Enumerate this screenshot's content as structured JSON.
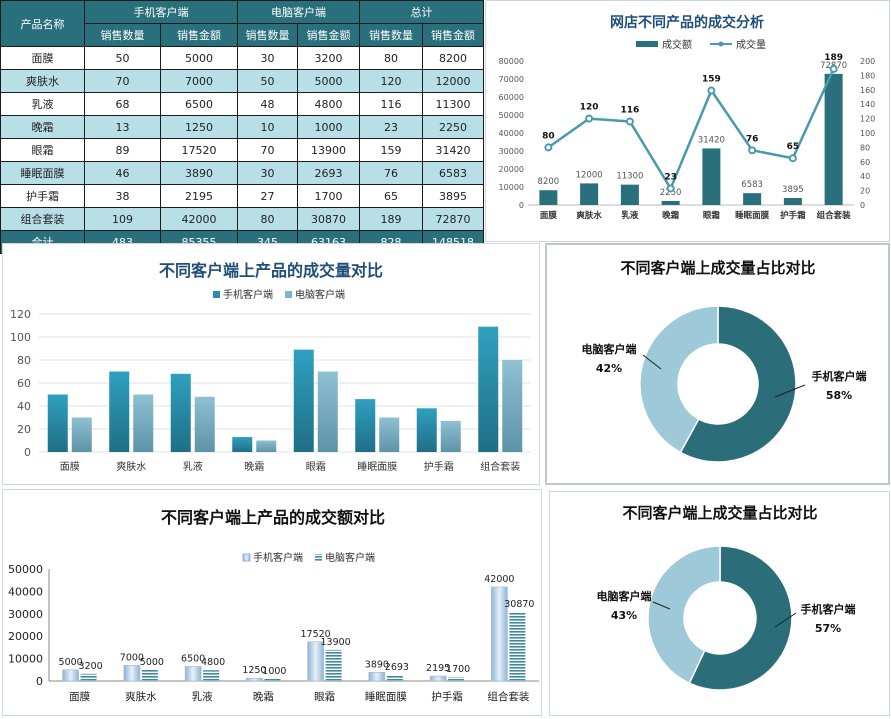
{
  "table": {
    "header_product": "产品名称",
    "groups": [
      "手机客户端",
      "电脑客户端",
      "总计"
    ],
    "sub_headers": [
      "销售数量",
      "销售金额",
      "销售数量",
      "销售金额",
      "销售数量",
      "销售金额"
    ],
    "rows": [
      [
        "面膜",
        "50",
        "5000",
        "30",
        "3200",
        "80",
        "8200"
      ],
      [
        "爽肤水",
        "70",
        "7000",
        "50",
        "5000",
        "120",
        "12000"
      ],
      [
        "乳液",
        "68",
        "6500",
        "48",
        "4800",
        "116",
        "11300"
      ],
      [
        "晚霜",
        "13",
        "1250",
        "10",
        "1000",
        "23",
        "2250"
      ],
      [
        "眼霜",
        "89",
        "17520",
        "70",
        "13900",
        "159",
        "31420"
      ],
      [
        "睡眠面膜",
        "46",
        "3890",
        "30",
        "2693",
        "76",
        "6583"
      ],
      [
        "护手霜",
        "38",
        "2195",
        "27",
        "1700",
        "65",
        "3895"
      ],
      [
        "组合套装",
        "109",
        "42000",
        "80",
        "30870",
        "189",
        "72870"
      ]
    ],
    "total": [
      "合计",
      "483",
      "85355",
      "345",
      "63163",
      "828",
      "148518"
    ]
  },
  "colors": {
    "dark_teal": "#2a6f7c",
    "mobile_bar": "#2e8aa8",
    "pc_bar": "#7fb3c8",
    "light_row": "#b8dfe8",
    "donut_dark": "#2b6e7a",
    "donut_light": "#9ec9d8",
    "amount_mobile": "#a9c6df",
    "amount_pc": "#4c8ea6",
    "title_blue": "#1f4e79"
  },
  "chart_data": [
    {
      "id": "combo",
      "type": "bar",
      "title": "网店不同产品的成交分析",
      "categories": [
        "面膜",
        "爽肤水",
        "乳液",
        "晚霜",
        "眼霜",
        "睡眠面膜",
        "护手霜",
        "组合套装"
      ],
      "series": [
        {
          "name": "成交额",
          "type": "bar",
          "axis": "left",
          "values": [
            8200,
            12000,
            11300,
            2250,
            31420,
            6583,
            3895,
            72870
          ]
        },
        {
          "name": "成交量",
          "type": "line",
          "axis": "right",
          "values": [
            80,
            120,
            116,
            23,
            159,
            76,
            65,
            189
          ]
        }
      ],
      "ylim_left": [
        0,
        80000
      ],
      "yticks_left": [
        "0",
        "10000",
        "20000",
        "30000",
        "40000",
        "50000",
        "60000",
        "70000",
        "80000"
      ],
      "ylim_right": [
        0,
        200
      ],
      "yticks_right": [
        "0",
        "20",
        "40",
        "60",
        "80",
        "100",
        "120",
        "140",
        "160",
        "180",
        "200"
      ],
      "legend": "top"
    },
    {
      "id": "volume",
      "type": "bar",
      "title": "不同客户端上产品的成交量对比",
      "categories": [
        "面膜",
        "爽肤水",
        "乳液",
        "晚霜",
        "眼霜",
        "睡眠面膜",
        "护手霜",
        "组合套装"
      ],
      "series": [
        {
          "name": "手机客户端",
          "values": [
            50,
            70,
            68,
            13,
            89,
            46,
            38,
            109
          ]
        },
        {
          "name": "电脑客户端",
          "values": [
            30,
            50,
            48,
            10,
            70,
            30,
            27,
            80
          ]
        }
      ],
      "ylim": [
        0,
        120
      ],
      "yticks": [
        "0",
        "20",
        "40",
        "60",
        "80",
        "100",
        "120"
      ],
      "grid": true,
      "legend": "top"
    },
    {
      "id": "donut1",
      "type": "pie",
      "title": "不同客户端上成交量占比对比",
      "slices": [
        {
          "name": "手机客户端",
          "value": 58,
          "label": "58%"
        },
        {
          "name": "电脑客户端",
          "value": 42,
          "label": "42%"
        }
      ]
    },
    {
      "id": "amount",
      "type": "bar",
      "title": "不同客户端上产品的成交额对比",
      "categories": [
        "面膜",
        "爽肤水",
        "乳液",
        "晚霜",
        "眼霜",
        "睡眠面膜",
        "护手霜",
        "组合套装"
      ],
      "series": [
        {
          "name": "手机客户端",
          "values": [
            5000,
            7000,
            6500,
            1250,
            17520,
            3890,
            2195,
            42000
          ]
        },
        {
          "name": "电脑客户端",
          "values": [
            3200,
            5000,
            4800,
            1000,
            13900,
            2693,
            1700,
            30870
          ]
        }
      ],
      "ylim": [
        0,
        50000
      ],
      "yticks": [
        "0",
        "10000",
        "20000",
        "30000",
        "40000",
        "50000"
      ],
      "legend": "top"
    },
    {
      "id": "donut2",
      "type": "pie",
      "title": "不同客户端上成交量占比对比",
      "slices": [
        {
          "name": "手机客户端",
          "value": 57,
          "label": "57%"
        },
        {
          "name": "电脑客户端",
          "value": 43,
          "label": "43%"
        }
      ]
    }
  ]
}
